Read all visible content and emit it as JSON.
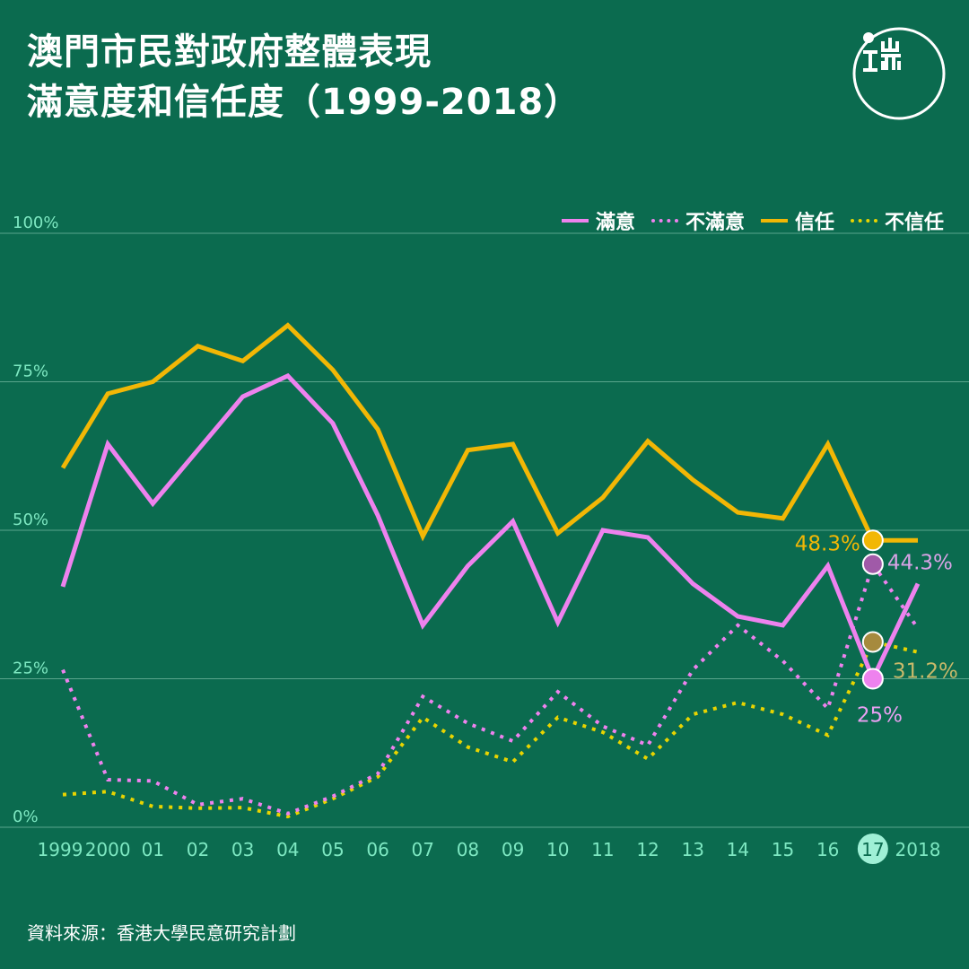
{
  "header": {
    "title_line1": "澳門市民對政府整體表現",
    "title_line2": "滿意度和信任度（1999-2018）"
  },
  "source": "資料來源：香港大學民意研究計劃",
  "colors": {
    "background": "#0b6b4f",
    "grid": "#5aa58c",
    "tick_text": "#7ee8c2",
    "satisfied": "#ee82ee",
    "dissatisfied": "#ee82ee",
    "trust": "#f2b705",
    "distrust": "#e8d400",
    "label_trust": "#f2b705",
    "label_dissatisfied": "#d9a3e6",
    "label_distrust": "#c9b96a",
    "label_satisfied": "#e9a0f2",
    "highlight_badge": "#9ff0d6"
  },
  "icons": {
    "logo": "initium-logo-icon"
  },
  "chart_data": {
    "type": "line",
    "categories": [
      "1999",
      "2000",
      "01",
      "02",
      "03",
      "04",
      "05",
      "06",
      "07",
      "08",
      "09",
      "10",
      "11",
      "12",
      "13",
      "14",
      "15",
      "16",
      "17",
      "2018"
    ],
    "highlight_category": "17",
    "ylim": [
      0,
      100
    ],
    "yticks": [
      0,
      25,
      50,
      75,
      100
    ],
    "ytick_labels": [
      "0%",
      "25%",
      "50%",
      "75%",
      "100%"
    ],
    "grid": true,
    "legend_position": "top-right",
    "series": [
      {
        "name": "滿意",
        "style": "solid",
        "values": [
          40.5,
          64.5,
          54.5,
          63.5,
          72.5,
          76,
          68,
          52.5,
          34,
          44,
          51.5,
          34.5,
          50,
          48.8,
          41,
          35.5,
          34,
          44,
          25,
          41
        ]
      },
      {
        "name": "不滿意",
        "style": "dotted",
        "values": [
          26.5,
          8,
          7.8,
          3.8,
          4.8,
          2.3,
          5.2,
          9,
          22,
          17.5,
          14.5,
          22.8,
          17,
          13.8,
          26.5,
          34,
          28,
          20,
          44.3,
          33.5
        ]
      },
      {
        "name": "信任",
        "style": "solid",
        "values": [
          60.5,
          73,
          75,
          81,
          78.5,
          84.5,
          77,
          67,
          49,
          63.5,
          64.5,
          49.5,
          55.5,
          65,
          58.5,
          53,
          52,
          64.5,
          48.3,
          48.3
        ]
      },
      {
        "name": "不信任",
        "style": "dotted",
        "values": [
          5.5,
          6,
          3.5,
          3.2,
          3.3,
          1.8,
          4.8,
          8.5,
          18.5,
          13.5,
          11,
          18.5,
          16,
          11.5,
          19,
          21,
          19,
          15.5,
          31.2,
          29.5
        ]
      }
    ],
    "annotations": [
      {
        "series": "信任",
        "category": "17",
        "text": "48.3%"
      },
      {
        "series": "不滿意",
        "category": "17",
        "text": "44.3%"
      },
      {
        "series": "不信任",
        "category": "17",
        "text": "31.2%"
      },
      {
        "series": "滿意",
        "category": "17",
        "text": "25%"
      }
    ]
  }
}
